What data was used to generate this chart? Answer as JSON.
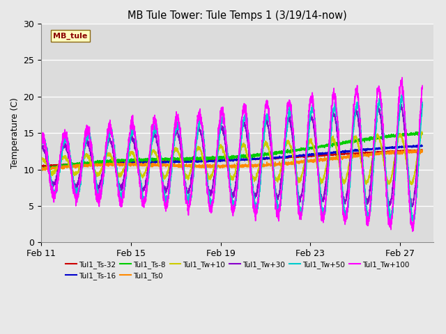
{
  "title": "MB Tule Tower: Tule Temps 1 (3/19/14-now)",
  "ylabel": "Temperature (C)",
  "xtick_labels": [
    "Feb 11",
    "Feb 15",
    "Feb 19",
    "Feb 23",
    "Feb 27"
  ],
  "xtick_positions": [
    0,
    4,
    8,
    12,
    16
  ],
  "ylim": [
    0,
    30
  ],
  "yticks": [
    0,
    5,
    10,
    15,
    20,
    25,
    30
  ],
  "xlim": [
    0,
    17.5
  ],
  "bg_color": "#e8e8e8",
  "plot_bg_color": "#dcdcdc",
  "series": [
    {
      "name": "Tul1_Ts-32",
      "color": "#cc0000",
      "lw": 1.2
    },
    {
      "name": "Tul1_Ts-16",
      "color": "#0000cc",
      "lw": 1.2
    },
    {
      "name": "Tul1_Ts-8",
      "color": "#00cc00",
      "lw": 1.2
    },
    {
      "name": "Tul1_Ts0",
      "color": "#ff8800",
      "lw": 1.2
    },
    {
      "name": "Tul1_Tw+10",
      "color": "#cccc00",
      "lw": 1.2
    },
    {
      "name": "Tul1_Tw+30",
      "color": "#8800cc",
      "lw": 1.2
    },
    {
      "name": "Tul1_Tw+50",
      "color": "#00cccc",
      "lw": 1.2
    },
    {
      "name": "Tul1_Tw+100",
      "color": "#ff00ff",
      "lw": 1.2
    }
  ],
  "legend_rows": [
    [
      "Tul1_Ts-32",
      "Tul1_Ts-16",
      "Tul1_Ts-8",
      "Tul1_Ts0",
      "Tul1_Tw+10",
      "Tul1_Tw+30"
    ],
    [
      "Tul1_Tw+50",
      "Tul1_Tw+100"
    ]
  ]
}
